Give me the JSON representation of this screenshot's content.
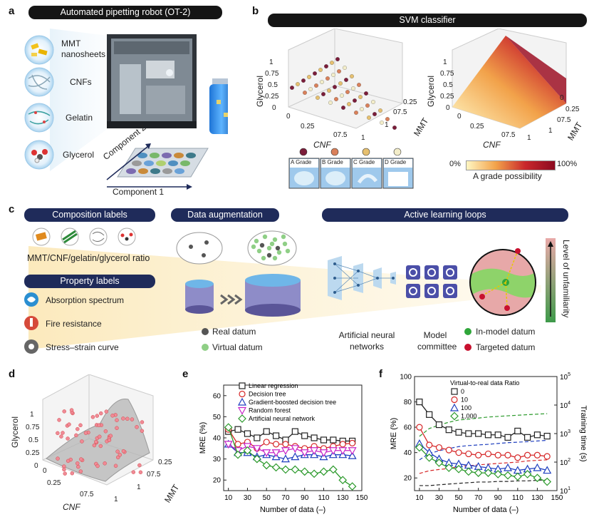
{
  "panel_a": {
    "label": "a",
    "title": "Automated pipetting robot (OT-2)",
    "materials": [
      "MMT nanosheets",
      "CNFs",
      "Gelatin",
      "Glycerol"
    ],
    "component1": "Component 1",
    "component2": "Component 2"
  },
  "panel_b": {
    "label": "b",
    "title": "SVM classifier",
    "axes": {
      "x": "CNF",
      "y": "MMT",
      "z": "Glycerol"
    },
    "ticks": [
      "0",
      "0.25",
      "0.5",
      "0.75",
      "1"
    ],
    "ticks_shown": [
      "0",
      "0.25",
      "07.5",
      "1"
    ],
    "grades": [
      {
        "label": "A Grade",
        "color": "#7b1d3a"
      },
      {
        "label": "B Grade",
        "color": "#d9805a"
      },
      {
        "label": "C Grade",
        "color": "#e6c070"
      },
      {
        "label": "D Grade",
        "color": "#f3edc9"
      }
    ],
    "colorbar": {
      "min": "0%",
      "max": "100%",
      "label": "A grade possibility",
      "low_color": "#fff6c2",
      "high_color": "#8c0a20"
    }
  },
  "panel_c": {
    "label": "c",
    "composition_title": "Composition labels",
    "composition_text": "MMT/CNF/gelatin/glycerol ratio",
    "property_title": "Property labels",
    "properties": [
      "Absorption spectrum",
      "Fire resistance",
      "Stress–strain curve"
    ],
    "augmentation_title": "Data augmentation",
    "real_datum": "Real datum",
    "virtual_datum": "Virtual datum",
    "active_title": "Active learning loops",
    "ann_label": "Artificial neural networks",
    "committee_label": "Model committee",
    "in_model": "In-model datum",
    "targeted": "Targeted datum",
    "unfamiliarity": "Level of unfamiliarity"
  },
  "panel_d": {
    "label": "d",
    "axes": {
      "x": "CNF",
      "y": "MMT",
      "z": "Glycerol"
    },
    "ticks": [
      "0",
      "0.25",
      "0.5",
      "0.75",
      "1"
    ],
    "ticks_shown": [
      "0",
      "0.25",
      "07.5",
      "1"
    ]
  },
  "panel_e": {
    "label": "e",
    "xlabel": "Number of data (–)",
    "ylabel": "MRE (%)",
    "xticks": [
      "10",
      "30",
      "50",
      "70",
      "90",
      "110",
      "130",
      "150"
    ],
    "yticks": [
      "20",
      "30",
      "40",
      "50",
      "60"
    ]
  },
  "panel_f": {
    "label": "f",
    "xlabel": "Number of data (–)",
    "ylabel": "MRE (%)",
    "ylabel_right": "Training time (s)",
    "legend_title": "Virtual-to-real data Ratio",
    "xticks": [
      "10",
      "30",
      "50",
      "70",
      "90",
      "110",
      "130",
      "150"
    ],
    "yticks": [
      "20",
      "40",
      "60",
      "80",
      "100"
    ],
    "yticks_right": [
      "10",
      "10",
      "10",
      "10",
      "10"
    ],
    "yticks_right_exp": [
      "1",
      "2",
      "3",
      "4",
      "5"
    ]
  },
  "chart_data": [
    {
      "type": "line",
      "panel": "e",
      "xlabel": "Number of data (–)",
      "ylabel": "MRE (%)",
      "xlim": [
        5,
        150
      ],
      "ylim": [
        15,
        65
      ],
      "x": [
        10,
        20,
        30,
        40,
        50,
        60,
        70,
        80,
        90,
        100,
        110,
        120,
        130,
        140
      ],
      "series": [
        {
          "name": "Linear regression",
          "color": "#222222",
          "marker": "square",
          "values": [
            43,
            44,
            42,
            40,
            43,
            41,
            39,
            43,
            41,
            40,
            39,
            39,
            38.5,
            38.5
          ]
        },
        {
          "name": "Decision tree",
          "color": "#d62728",
          "marker": "circle",
          "values": [
            44,
            37,
            38,
            35,
            38,
            37,
            37,
            36,
            35,
            36,
            35,
            36,
            37,
            37.5
          ]
        },
        {
          "name": "Gradient-boosted decision tree",
          "color": "#1f3fbf",
          "marker": "triangle-up",
          "values": [
            37,
            33,
            33,
            31,
            32,
            31,
            30,
            31,
            32,
            32,
            31,
            32,
            32,
            31.5
          ]
        },
        {
          "name": "Random forest",
          "color": "#c724c7",
          "marker": "triangle-down",
          "values": [
            37,
            34,
            36,
            35,
            33,
            33,
            34,
            35,
            33,
            34,
            33,
            34,
            34,
            34
          ]
        },
        {
          "name": "Artificial neural network",
          "color": "#2c9a2c",
          "marker": "diamond",
          "values": [
            45,
            32,
            34,
            30,
            27,
            26,
            25,
            25,
            24,
            23,
            24,
            25,
            20,
            17
          ]
        }
      ]
    },
    {
      "type": "line",
      "panel": "f",
      "xlabel": "Number of data (–)",
      "ylabel": "MRE (%)",
      "ylabel_right": "Training time (s)",
      "xlim": [
        5,
        150
      ],
      "ylim": [
        10,
        100
      ],
      "ylim_right_log": [
        10,
        100000
      ],
      "x": [
        10,
        20,
        30,
        40,
        50,
        60,
        70,
        80,
        90,
        100,
        110,
        120,
        130,
        140
      ],
      "series": [
        {
          "name": "0",
          "color": "#222222",
          "marker": "square",
          "values": [
            80,
            70,
            62,
            58,
            56,
            55,
            55,
            54,
            54,
            52,
            57,
            52,
            54,
            53
          ]
        },
        {
          "name": "10",
          "color": "#d62728",
          "marker": "circle",
          "values": [
            60,
            46,
            44,
            42,
            40,
            39,
            38,
            39,
            38,
            38,
            36,
            38,
            38,
            37
          ]
        },
        {
          "name": "100",
          "color": "#1f3fbf",
          "marker": "triangle-up",
          "values": [
            47,
            40,
            35,
            32,
            31,
            30,
            29,
            28,
            27,
            28,
            26,
            27,
            28,
            26
          ]
        },
        {
          "name": "1,000",
          "color": "#2c9a2c",
          "marker": "diamond",
          "values": [
            44,
            36,
            32,
            28,
            27,
            25,
            24,
            24,
            23,
            22,
            21,
            23,
            20,
            17
          ]
        }
      ],
      "time_series": [
        {
          "name": "0",
          "color": "#222222",
          "values": [
            15,
            15,
            16,
            17,
            18,
            19,
            20,
            20,
            21,
            21,
            22,
            22,
            23,
            24
          ]
        },
        {
          "name": "10",
          "color": "#d62728",
          "values": [
            40,
            50,
            55,
            60,
            70,
            75,
            80,
            85,
            90,
            95,
            100,
            110,
            115,
            120
          ]
        },
        {
          "name": "100",
          "color": "#1f3fbf",
          "values": [
            120,
            200,
            250,
            300,
            350,
            380,
            400,
            420,
            450,
            480,
            500,
            520,
            550,
            580
          ]
        },
        {
          "name": "1,000",
          "color": "#2c9a2c",
          "values": [
            800,
            1500,
            2000,
            2500,
            3000,
            3200,
            3500,
            3800,
            4000,
            4200,
            4400,
            4600,
            4800,
            5000
          ]
        }
      ]
    }
  ]
}
